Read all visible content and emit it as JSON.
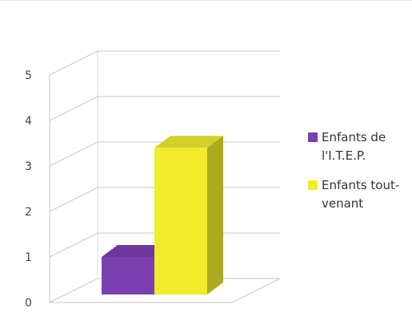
{
  "chart_data": {
    "type": "bar",
    "categories": [
      ""
    ],
    "series": [
      {
        "name": "Enfants de l'I.T.E.P.",
        "values": [
          1
        ],
        "color": "#7b3fb0"
      },
      {
        "name": "Enfants tout-venant",
        "values": [
          3.4
        ],
        "color": "#f0ec2c"
      }
    ],
    "yticks": [
      "0",
      "1",
      "2",
      "3",
      "4",
      "5"
    ],
    "ylim": [
      0,
      5
    ],
    "grid": true,
    "three_d": true,
    "legend_position": "right",
    "legend": [
      {
        "lines": [
          "Enfants de",
          "l'I.T.E.P."
        ]
      },
      {
        "lines": [
          "Enfants tout-",
          "venant"
        ]
      }
    ]
  }
}
